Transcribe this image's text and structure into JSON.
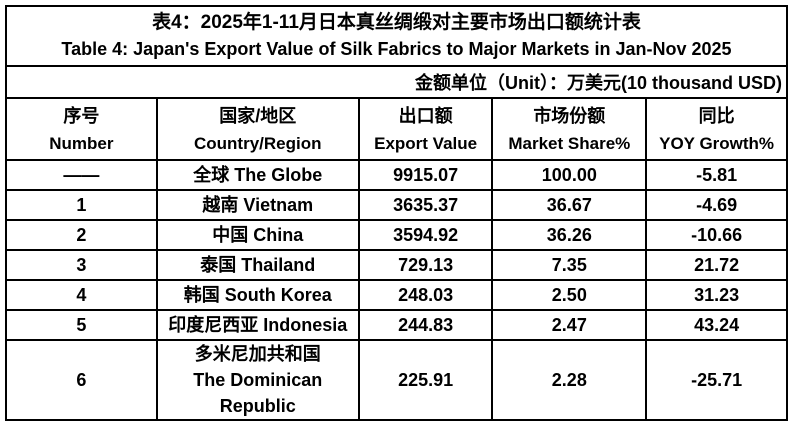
{
  "page": {
    "title_zh": "表4：2025年1-11月日本真丝绸缎对主要市场出口额统计表",
    "title_en": "Table 4: Japan's Export Value of Silk Fabrics to Major Markets in Jan-Nov 2025",
    "unit_note": "金额单位（Unit）：万美元(10 thousand USD)"
  },
  "table": {
    "columns": [
      {
        "zh": "序号",
        "en": "Number"
      },
      {
        "zh": "国家/地区",
        "en": "Country/Region"
      },
      {
        "zh": "出口额",
        "en": "Export Value"
      },
      {
        "zh": "市场份额",
        "en": "Market Share%"
      },
      {
        "zh": "同比",
        "en": "YOY Growth%"
      }
    ],
    "rows": [
      {
        "number": "——",
        "country": "全球 The Globe",
        "export_value": "9915.07",
        "market_share": "100.00",
        "yoy_growth": "-5.81"
      },
      {
        "number": "1",
        "country": "越南 Vietnam",
        "export_value": "3635.37",
        "market_share": "36.67",
        "yoy_growth": "-4.69"
      },
      {
        "number": "2",
        "country": "中国 China",
        "export_value": "3594.92",
        "market_share": "36.26",
        "yoy_growth": "-10.66"
      },
      {
        "number": "3",
        "country": "泰国 Thailand",
        "export_value": "729.13",
        "market_share": "7.35",
        "yoy_growth": "21.72"
      },
      {
        "number": "4",
        "country": "韩国 South Korea",
        "export_value": "248.03",
        "market_share": "2.50",
        "yoy_growth": "31.23"
      },
      {
        "number": "5",
        "country": "印度尼西亚 Indonesia",
        "export_value": "244.83",
        "market_share": "2.47",
        "yoy_growth": "43.24"
      },
      {
        "number": "6",
        "country": "多米尼加共和国\nThe Dominican\nRepublic",
        "export_value": "225.91",
        "market_share": "2.28",
        "yoy_growth": "-25.71"
      }
    ]
  },
  "colors": {
    "text": "#000000",
    "border": "#000000",
    "background": "#ffffff"
  },
  "chart_data": {
    "type": "table",
    "title": "表4：2025年1-11月日本真丝绸缎对主要市场出口额统计表 / Table 4: Japan's Export Value of Silk Fabrics to Major Markets in Jan-Nov 2025",
    "unit": "万美元 (10 thousand USD)",
    "columns": [
      "序号 Number",
      "国家/地区 Country/Region",
      "出口额 Export Value",
      "市场份额 Market Share%",
      "同比 YOY Growth%"
    ],
    "rows": [
      [
        "——",
        "全球 The Globe",
        9915.07,
        100.0,
        -5.81
      ],
      [
        "1",
        "越南 Vietnam",
        3635.37,
        36.67,
        -4.69
      ],
      [
        "2",
        "中国 China",
        3594.92,
        36.26,
        -10.66
      ],
      [
        "3",
        "泰国 Thailand",
        729.13,
        7.35,
        21.72
      ],
      [
        "4",
        "韩国 South Korea",
        248.03,
        2.5,
        31.23
      ],
      [
        "5",
        "印度尼西亚 Indonesia",
        244.83,
        2.47,
        43.24
      ],
      [
        "6",
        "多米尼加共和国 The Dominican Republic",
        225.91,
        2.28,
        -25.71
      ]
    ]
  }
}
